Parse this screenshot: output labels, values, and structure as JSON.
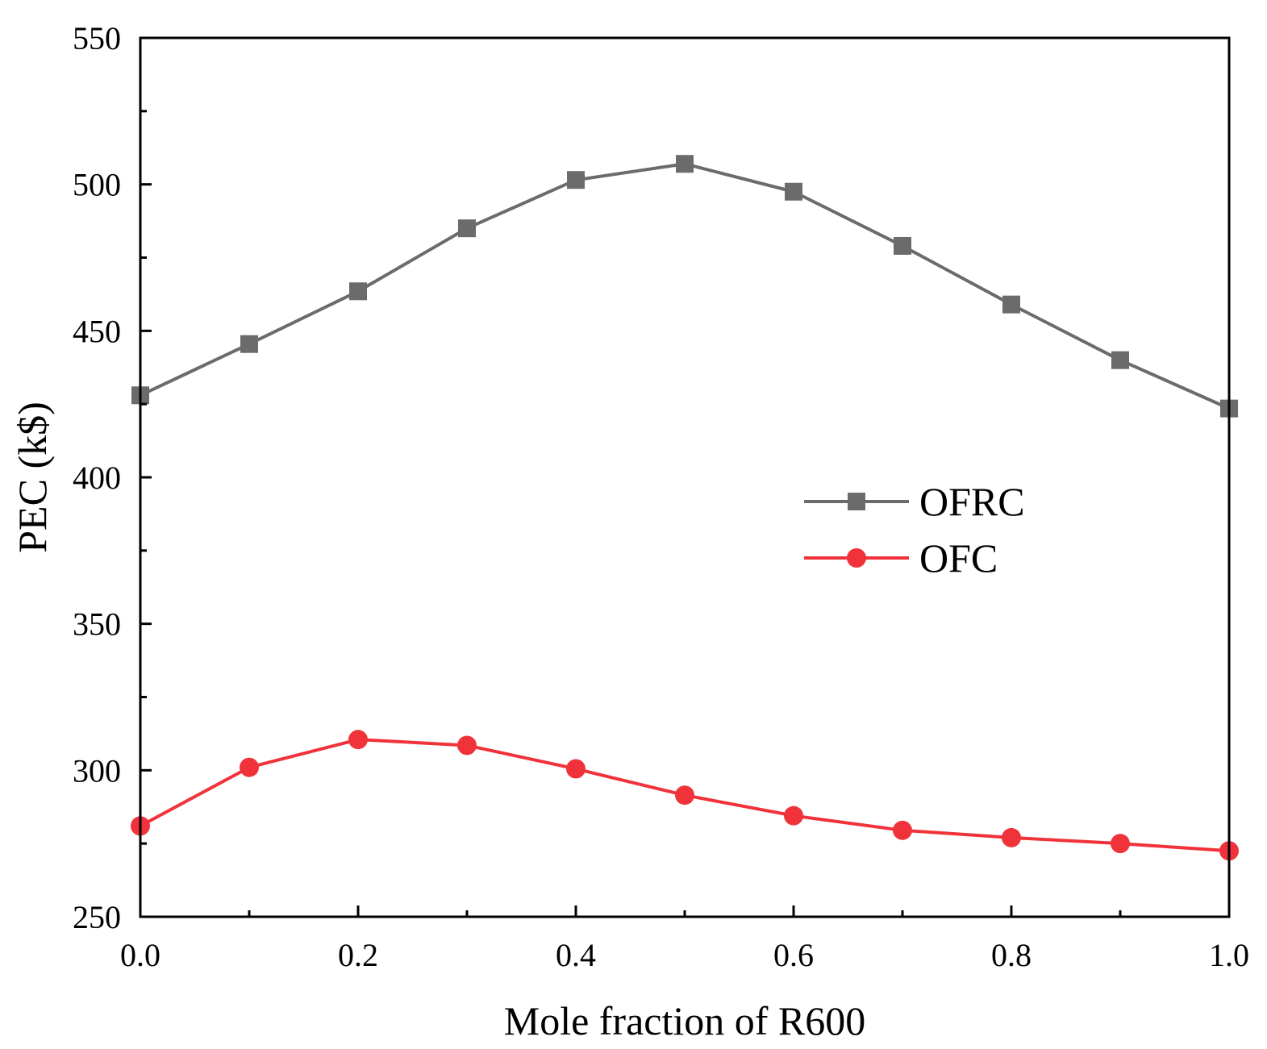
{
  "chart_data": {
    "type": "line",
    "title": "",
    "xlabel": "Mole fraction of R600",
    "ylabel": "PEC (k$)",
    "xlim": [
      0.0,
      1.0
    ],
    "ylim": [
      250,
      550
    ],
    "x_ticks": [
      "0.0",
      "0.2",
      "0.4",
      "0.6",
      "0.8",
      "1.0"
    ],
    "y_ticks": [
      "250",
      "300",
      "350",
      "400",
      "450",
      "500",
      "550"
    ],
    "legend_position": "center-right",
    "grid": false,
    "x": [
      0.0,
      0.1,
      0.2,
      0.3,
      0.4,
      0.5,
      0.6,
      0.7,
      0.8,
      0.9,
      1.0
    ],
    "series": [
      {
        "name": "OFRC",
        "marker": "square",
        "color": "#6b6b6b",
        "values": [
          428,
          445.5,
          463.5,
          485,
          501.5,
          507,
          497.5,
          479,
          459,
          440,
          423.5
        ]
      },
      {
        "name": "OFC",
        "marker": "circle",
        "color": "#f0333a",
        "values": [
          281,
          301,
          310.5,
          308.5,
          300.5,
          291.5,
          284.5,
          279.5,
          277,
          275,
          272.5
        ]
      }
    ]
  }
}
